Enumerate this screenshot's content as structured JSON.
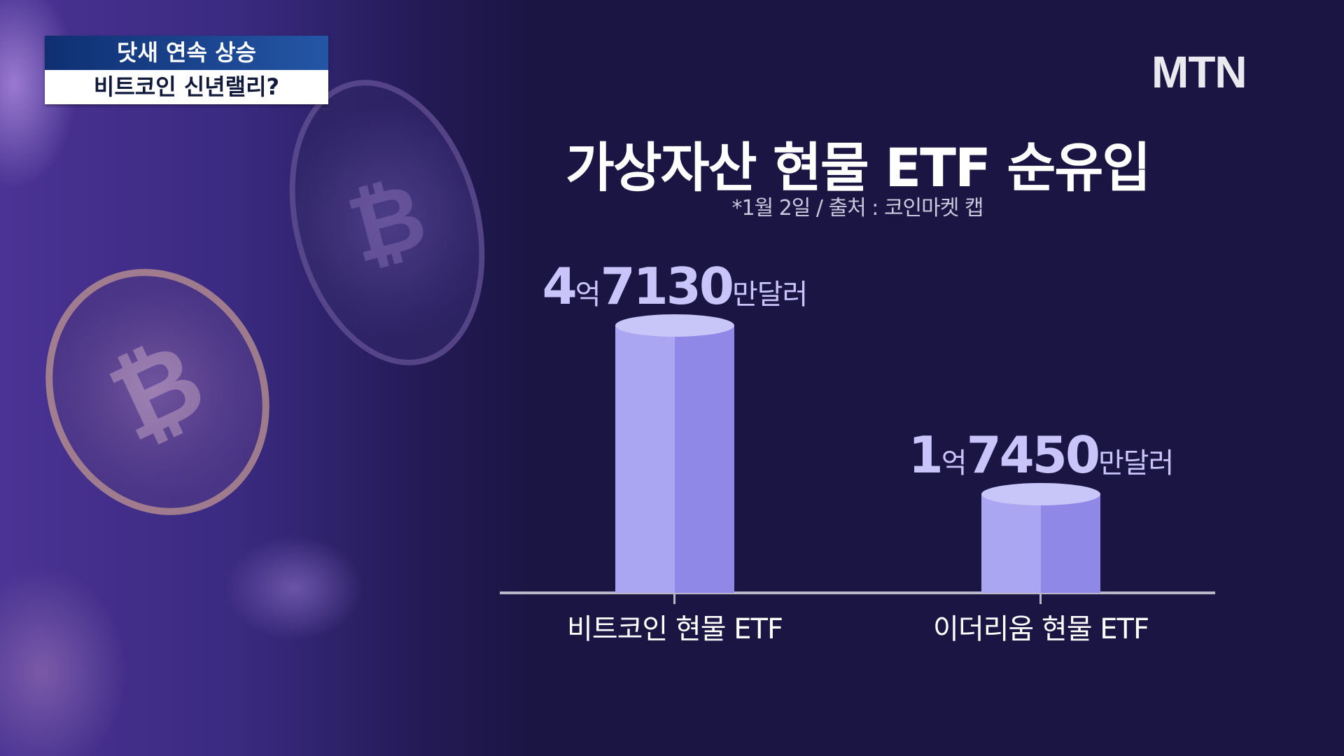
{
  "caption": {
    "line1": "닷새 연속 상승",
    "line2": "비트코인 신년랠리?"
  },
  "logo": "MTN",
  "chart_data": {
    "type": "bar",
    "title": "가상자산 현물 ETF 순유입",
    "subtitle": "*1월 2일 / 출처 : 코인마켓 캡",
    "categories": [
      "비트코인 현물 ETF",
      "이더리움 현물 ETF"
    ],
    "values": [
      47130,
      17450
    ],
    "unit": "만달러",
    "labels": [
      {
        "eok": "4",
        "eok_unit": "억",
        "man": "7130",
        "man_unit": "만달러"
      },
      {
        "eok": "1",
        "eok_unit": "억",
        "man": "7450",
        "man_unit": "만달러"
      }
    ],
    "xlabel": "",
    "ylabel": "",
    "grid": false,
    "colors": {
      "bar_light": "#aaa6f2",
      "bar_dark": "#8f88e6",
      "bar_top": "#c8c5f9",
      "label": "#c9c5fa"
    }
  }
}
